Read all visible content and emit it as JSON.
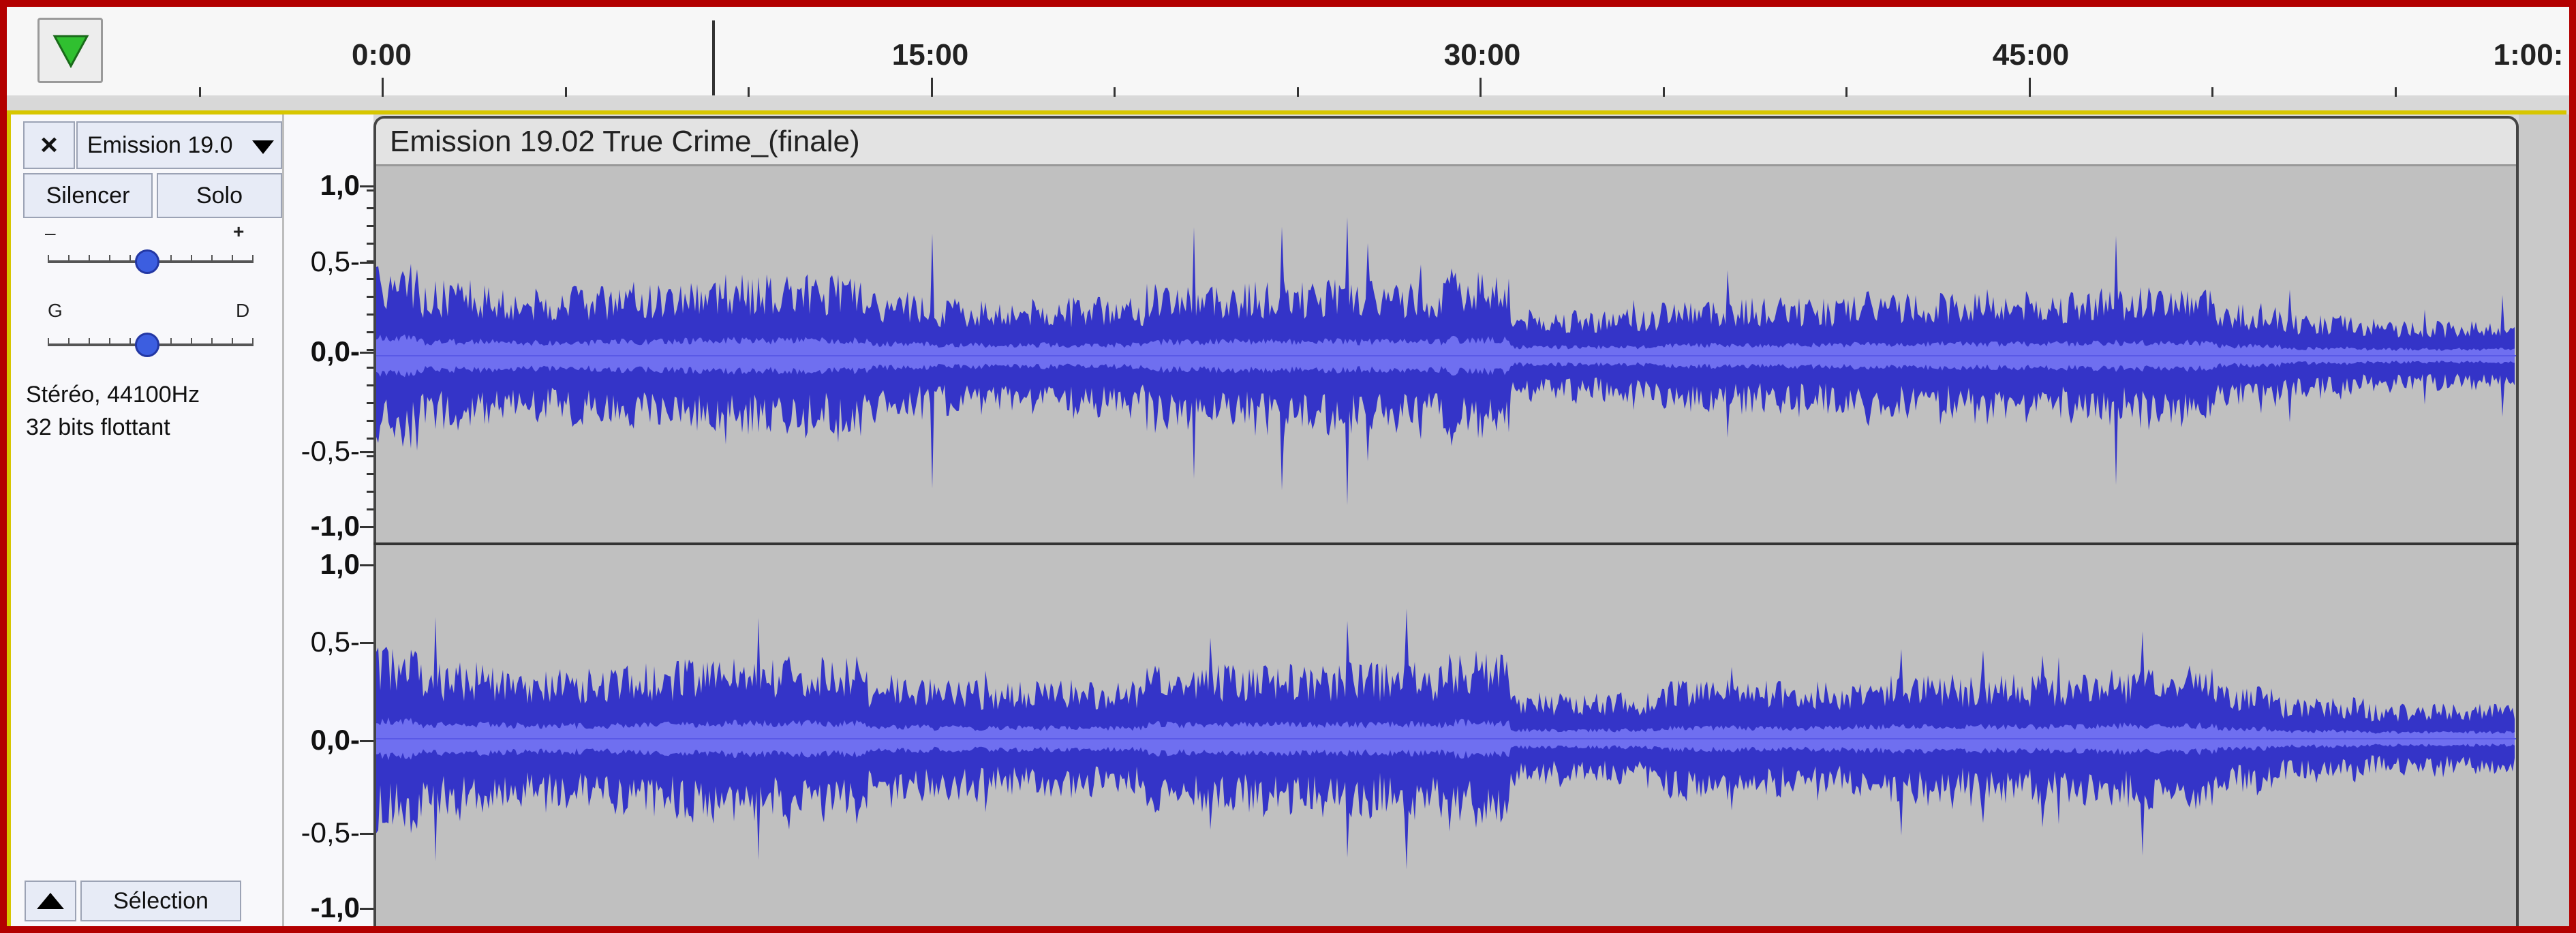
{
  "ruler": {
    "play_icon": "play-green-triangle-icon",
    "labels": [
      "0:00",
      "15:00",
      "30:00",
      "45:00",
      "1:00:"
    ]
  },
  "track": {
    "close_label": "×",
    "name": "Emission 19.0",
    "mute_label": "Silencer",
    "solo_label": "Solo",
    "gain_minus": "–",
    "gain_plus": "+",
    "pan_left": "G",
    "pan_right": "D",
    "format_line1": "Stéréo, 44100Hz",
    "format_line2": "32 bits flottant",
    "select_label": "Sélection",
    "collapse_icon": "collapse-up-triangle-icon"
  },
  "clip": {
    "title": "Emission 19.02 True Crime_(finale)"
  },
  "scale": {
    "top": [
      "1,0",
      "0,5-",
      "0,0-",
      "-0,5-",
      "-1,0"
    ],
    "bottom": [
      "1,0",
      "0,5-",
      "0,0-",
      "-0,5-",
      "-1,0"
    ]
  },
  "colors": {
    "frame": "#b30000",
    "waveform": "#3434c8",
    "waveform_rms": "#6f6ff0",
    "clip_bg": "#c0c0c0",
    "track_border": "#d7c600",
    "play_icon": "#30c030"
  }
}
